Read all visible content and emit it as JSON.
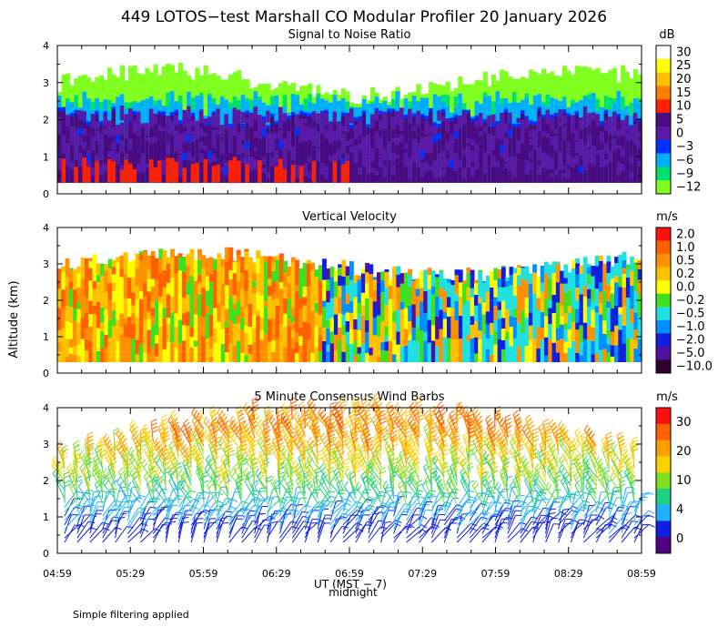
{
  "figure": {
    "title": "449 LOTOS−test Marshall CO Modular Profiler 20 January 2026",
    "ylabel": "Altitude (km)",
    "xlabel": "UT (MST − 7)",
    "midnight_label": "midnight",
    "footer": "Simple filtering applied",
    "x_ticks": [
      "04:59",
      "05:29",
      "05:59",
      "06:29",
      "06:59",
      "07:29",
      "07:59",
      "08:29",
      "08:59"
    ],
    "y_ticks": [
      "0",
      "1",
      "2",
      "3",
      "4"
    ],
    "ylim": [
      0,
      4
    ]
  },
  "chart_data": [
    {
      "type": "heatmap",
      "title": "Signal to Noise Ratio",
      "unit": "dB",
      "xlim": [
        "04:59",
        "08:59"
      ],
      "ylim": [
        0,
        4
      ],
      "data_range_km": [
        0.3,
        3.3
      ],
      "colorbar": {
        "labels": [
          "30",
          "25",
          "20",
          "15",
          "10",
          "5",
          "0",
          "−3",
          "−6",
          "−9",
          "−12"
        ],
        "colors": [
          "#ffffff",
          "#ffff00",
          "#ffc000",
          "#ff8000",
          "#ff2000",
          "#4a0a80",
          "#5a1aa8",
          "#0030ff",
          "#00b0ff",
          "#00e070",
          "#80ff20"
        ]
      },
      "profile": [
        {
          "alt_range": [
            0.3,
            1.0
          ],
          "value_range": [
            0,
            15
          ]
        },
        {
          "alt_range": [
            1.0,
            2.4
          ],
          "value_range": [
            0,
            5
          ]
        },
        {
          "alt_range": [
            2.2,
            3.5
          ],
          "value_range": [
            -12,
            -3
          ]
        }
      ]
    },
    {
      "type": "heatmap",
      "title": "Vertical Velocity",
      "unit": "m/s",
      "xlim": [
        "04:59",
        "08:59"
      ],
      "ylim": [
        0,
        4
      ],
      "data_range_km": [
        0.3,
        3.5
      ],
      "colorbar": {
        "labels": [
          "2.0",
          "1.0",
          "0.5",
          "0.2",
          "0.0",
          "−0.2",
          "−0.5",
          "−1.0",
          "−2.0",
          "−5.0",
          "−10.0"
        ],
        "colors": [
          "#ff1010",
          "#ff6000",
          "#ff9000",
          "#ffc000",
          "#ffff00",
          "#40e020",
          "#20e0e0",
          "#0090ff",
          "#1020e0",
          "#5010a0",
          "#300030"
        ]
      },
      "profile": [
        {
          "time_range": [
            "04:59",
            "06:45"
          ],
          "value_range": [
            0.0,
            1.0
          ]
        },
        {
          "time_range": [
            "06:45",
            "07:45"
          ],
          "value_range": [
            -2.0,
            0.5
          ]
        },
        {
          "time_range": [
            "07:45",
            "08:59"
          ],
          "value_range": [
            -0.5,
            0.5
          ]
        }
      ]
    },
    {
      "type": "scatter",
      "subtype": "wind-barbs",
      "title": "5 Minute Consensus Wind Barbs",
      "unit": "m/s",
      "xlim": [
        "04:59",
        "08:59"
      ],
      "ylim": [
        0,
        4
      ],
      "colorbar": {
        "labels": [
          "30",
          "20",
          "10",
          "4",
          "0"
        ],
        "colors": [
          "#ff1010",
          "#ff6000",
          "#ffa000",
          "#ffd000",
          "#80e020",
          "#20d080",
          "#20b0ff",
          "#1020e0",
          "#500080"
        ]
      },
      "speed_profile": [
        {
          "altitude_km": 0.5,
          "speed_ms": 3
        },
        {
          "altitude_km": 1.0,
          "speed_ms": 5
        },
        {
          "altitude_km": 1.5,
          "speed_ms": 9
        },
        {
          "altitude_km": 2.0,
          "speed_ms": 12
        },
        {
          "altitude_km": 2.5,
          "speed_ms": 15
        },
        {
          "altitude_km": 3.0,
          "speed_ms": 19
        },
        {
          "altitude_km": 3.5,
          "speed_ms": 22
        }
      ]
    }
  ]
}
